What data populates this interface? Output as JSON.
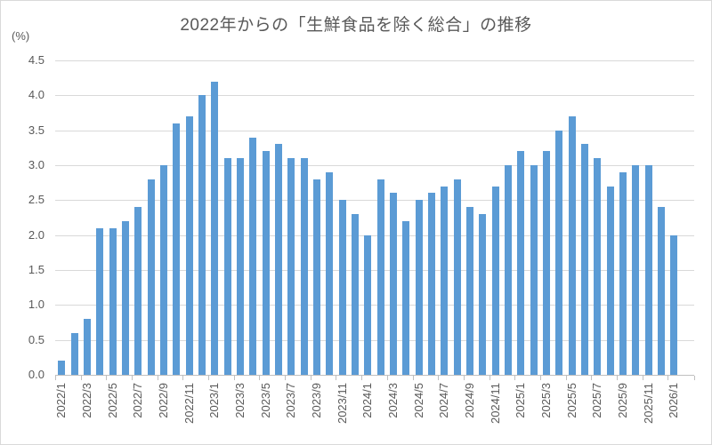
{
  "chart_data": {
    "type": "bar",
    "title": "2022年からの「生鮮食品を除く総合」の推移",
    "ylabel": "(%)",
    "xlabel": "",
    "ylim": [
      0,
      4.5
    ],
    "ytick_step": 0.5,
    "ytick_labels": [
      "0.0",
      "0.5",
      "1.0",
      "1.5",
      "2.0",
      "2.5",
      "3.0",
      "3.5",
      "4.0",
      "4.5"
    ],
    "grid": true,
    "legend_position": "none",
    "bar_color": "#5b9bd5",
    "gridline_color": "#d9d9d9",
    "axis_color": "#bfbfbf",
    "text_color": "#595959",
    "x_label_every": 2,
    "categories": [
      "2022/1",
      "2022/2",
      "2022/3",
      "2022/4",
      "2022/5",
      "2022/6",
      "2022/7",
      "2022/8",
      "2022/9",
      "2022/10",
      "2022/11",
      "2022/12",
      "2023/1",
      "2023/2",
      "2023/3",
      "2023/4",
      "2023/5",
      "2023/6",
      "2023/7",
      "2023/8",
      "2023/9",
      "2023/10",
      "2023/11",
      "2023/12",
      "2024/1",
      "2024/2",
      "2024/3",
      "2024/4",
      "2024/5",
      "2024/6",
      "2024/7",
      "2024/8",
      "2024/9",
      "2024/10",
      "2024/11",
      "2024/12",
      "2025/1",
      "2025/2",
      "2025/3",
      "2025/4",
      "2025/5",
      "2025/6",
      "2025/7",
      "2025/8",
      "2025/9",
      "2025/10",
      "2025/11",
      "2025/12",
      "2026/1"
    ],
    "values": [
      0.2,
      0.6,
      0.8,
      2.1,
      2.1,
      2.2,
      2.4,
      2.8,
      3.0,
      3.6,
      3.7,
      4.0,
      4.2,
      3.1,
      3.1,
      3.4,
      3.2,
      3.3,
      3.1,
      3.1,
      2.8,
      2.9,
      2.5,
      2.3,
      2.0,
      2.8,
      2.6,
      2.2,
      2.5,
      2.6,
      2.7,
      2.8,
      2.4,
      2.3,
      2.7,
      3.0,
      3.2,
      3.0,
      3.2,
      3.5,
      3.7,
      3.3,
      3.1,
      2.7,
      2.9,
      3.0,
      3.0,
      2.4,
      2.0
    ]
  }
}
